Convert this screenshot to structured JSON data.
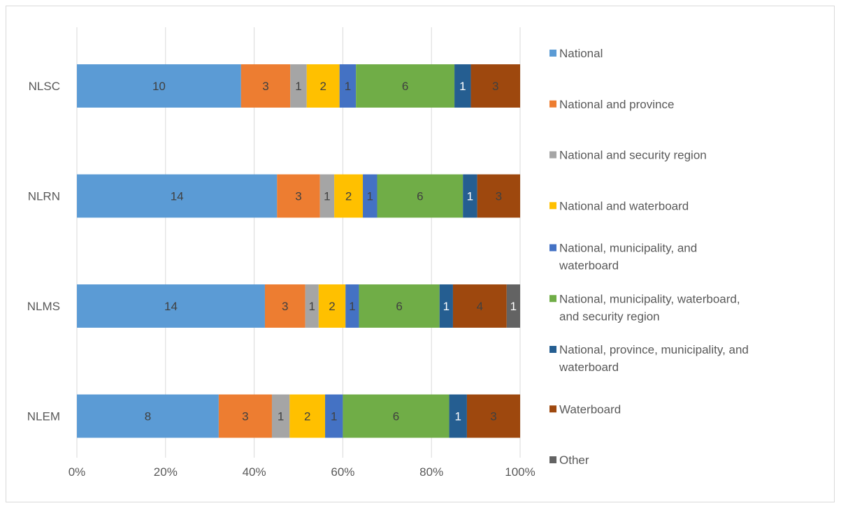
{
  "chart_data": {
    "type": "bar",
    "orientation": "horizontal",
    "stacking": "percent",
    "categories": [
      "NLSC",
      "NLRN",
      "NLMS",
      "NLEM"
    ],
    "xticks": [
      "0%",
      "20%",
      "40%",
      "60%",
      "80%",
      "100%"
    ],
    "xlim": [
      0,
      100
    ],
    "grid": "vertical",
    "legend_position": "right",
    "series": [
      {
        "name": "National",
        "color": "#5b9bd5",
        "label_color": "#404040",
        "values": [
          10,
          14,
          14,
          8
        ]
      },
      {
        "name": "National and province",
        "color": "#ed7d31",
        "label_color": "#404040",
        "values": [
          3,
          3,
          3,
          3
        ]
      },
      {
        "name": "National and security region",
        "color": "#a5a5a5",
        "label_color": "#404040",
        "values": [
          1,
          1,
          1,
          1
        ]
      },
      {
        "name": "National and waterboard",
        "color": "#ffc000",
        "label_color": "#404040",
        "values": [
          2,
          2,
          2,
          2
        ]
      },
      {
        "name": "National, municipality, and waterboard",
        "color": "#4472c4",
        "label_color": "#404040",
        "values": [
          1,
          1,
          1,
          1
        ]
      },
      {
        "name": "National, municipality, waterboard, and security region",
        "color": "#70ad47",
        "label_color": "#404040",
        "values": [
          6,
          6,
          6,
          6
        ]
      },
      {
        "name": "National, province, municipality, and waterboard",
        "color": "#255e91",
        "label_color": "#ffffff",
        "values": [
          1,
          1,
          1,
          1
        ]
      },
      {
        "name": "Waterboard",
        "color": "#9e480e",
        "label_color": "#404040",
        "values": [
          3,
          3,
          4,
          3
        ]
      },
      {
        "name": "Other",
        "color": "#636363",
        "label_color": "#ffffff",
        "values": [
          0,
          0,
          1,
          0
        ]
      }
    ],
    "legend_lines": [
      [
        "National"
      ],
      [
        "National and province"
      ],
      [
        "National and security region"
      ],
      [
        "National and waterboard"
      ],
      [
        "National, municipality, and",
        "waterboard"
      ],
      [
        "National, municipality, waterboard,",
        "and security region"
      ],
      [
        "National, province, municipality, and",
        "waterboard"
      ],
      [
        "Waterboard"
      ],
      [
        "Other"
      ]
    ]
  }
}
